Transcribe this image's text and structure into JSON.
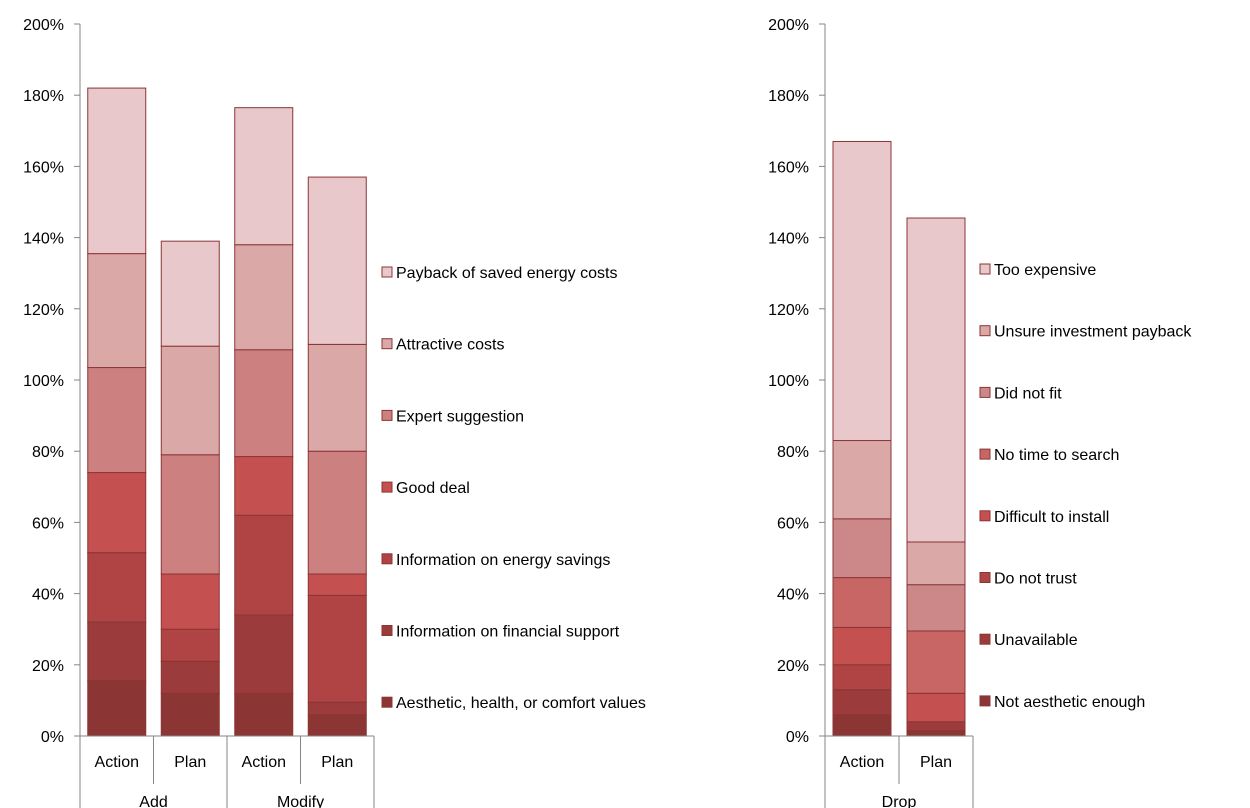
{
  "chart_data": [
    {
      "type": "bar",
      "stacked": true,
      "groups": [
        "Add",
        "Modify"
      ],
      "categories": [
        "Action",
        "Plan",
        "Action",
        "Plan"
      ],
      "ylim": [
        0,
        200
      ],
      "yticks": [
        "0%",
        "20%",
        "40%",
        "60%",
        "80%",
        "100%",
        "120%",
        "140%",
        "160%",
        "180%",
        "200%"
      ],
      "grid": false,
      "legend_position": "right",
      "series": [
        {
          "name": "Aesthetic, health, or comfort values",
          "color": "#8B3535",
          "values": [
            15.5,
            12,
            12,
            6
          ]
        },
        {
          "name": "Information on financial support",
          "color": "#9C3B3B",
          "values": [
            16.5,
            9,
            22,
            3.5
          ]
        },
        {
          "name": "Information on energy savings",
          "color": "#B04444",
          "values": [
            19.5,
            9,
            28,
            30
          ]
        },
        {
          "name": "Good deal",
          "color": "#C55050",
          "values": [
            22.5,
            15.5,
            16.5,
            6
          ]
        },
        {
          "name": "Expert suggestion",
          "color": "#CC8080",
          "values": [
            29.5,
            33.5,
            30,
            34.5
          ]
        },
        {
          "name": "Attractive costs",
          "color": "#DBA8A8",
          "values": [
            32,
            30.5,
            29.5,
            30
          ]
        },
        {
          "name": "Payback of saved energy costs",
          "color": "#E8C8CA",
          "values": [
            46.5,
            29.5,
            38.5,
            47
          ]
        }
      ]
    },
    {
      "type": "bar",
      "stacked": true,
      "groups": [
        "Drop"
      ],
      "categories": [
        "Action",
        "Plan"
      ],
      "ylim": [
        0,
        200
      ],
      "yticks": [
        "0%",
        "20%",
        "40%",
        "60%",
        "80%",
        "100%",
        "120%",
        "140%",
        "160%",
        "180%",
        "200%"
      ],
      "grid": false,
      "legend_position": "right",
      "series": [
        {
          "name": "Not aesthetic enough",
          "color": "#8B3535",
          "values": [
            6,
            1.5
          ]
        },
        {
          "name": "Unavailable",
          "color": "#9C3B3B",
          "values": [
            7,
            2.5
          ]
        },
        {
          "name": "Do not trust",
          "color": "#B04444",
          "values": [
            7,
            0
          ]
        },
        {
          "name": "Difficult to install",
          "color": "#C55050",
          "values": [
            10.5,
            8
          ]
        },
        {
          "name": "No time to search",
          "color": "#C86666",
          "values": [
            14,
            17.5
          ]
        },
        {
          "name": "Did not fit",
          "color": "#CC8888",
          "values": [
            16.5,
            13
          ]
        },
        {
          "name": "Unsure investment payback",
          "color": "#DBA8A8",
          "values": [
            22,
            12
          ]
        },
        {
          "name": "Too expensive",
          "color": "#E8C8CA",
          "values": [
            84,
            91
          ]
        }
      ]
    }
  ]
}
